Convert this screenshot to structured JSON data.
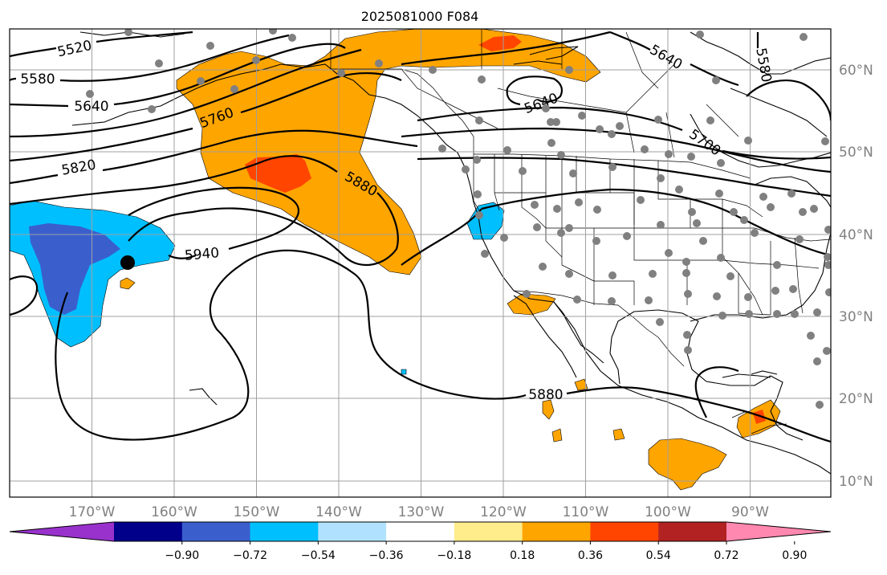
{
  "title": "2025081000 F084",
  "lon_labels": [
    "170°W",
    "160°W",
    "150°W",
    "140°W",
    "130°W",
    "120°W",
    "110°W",
    "100°W",
    "90°W"
  ],
  "lat_labels": [
    "60°N",
    "50°N",
    "40°N",
    "30°N",
    "20°N",
    "10°N"
  ],
  "contour_labels": [
    "5520",
    "5580",
    "5640",
    "5760",
    "5820",
    "5880",
    "5940",
    "5640",
    "5640",
    "5580",
    "5700",
    "5880"
  ],
  "colorbar": {
    "ticks": [
      "−0.90",
      "−0.72",
      "−0.54",
      "−0.36",
      "−0.18",
      "0.18",
      "0.36",
      "0.54",
      "0.72",
      "0.90"
    ],
    "colors": [
      "#9932cc",
      "#00008b",
      "#3a5fcd",
      "#00bfff",
      "#b0e2ff",
      "#ffffff",
      "#ffec8b",
      "#ffa500",
      "#ff4500",
      "#b22222",
      "#ff88b0"
    ]
  },
  "fill_colors": {
    "orange": "#ffa500",
    "red": "#ff4500",
    "lightblue": "#00bfff",
    "blue": "#3a5fcd",
    "station": "#808080"
  }
}
